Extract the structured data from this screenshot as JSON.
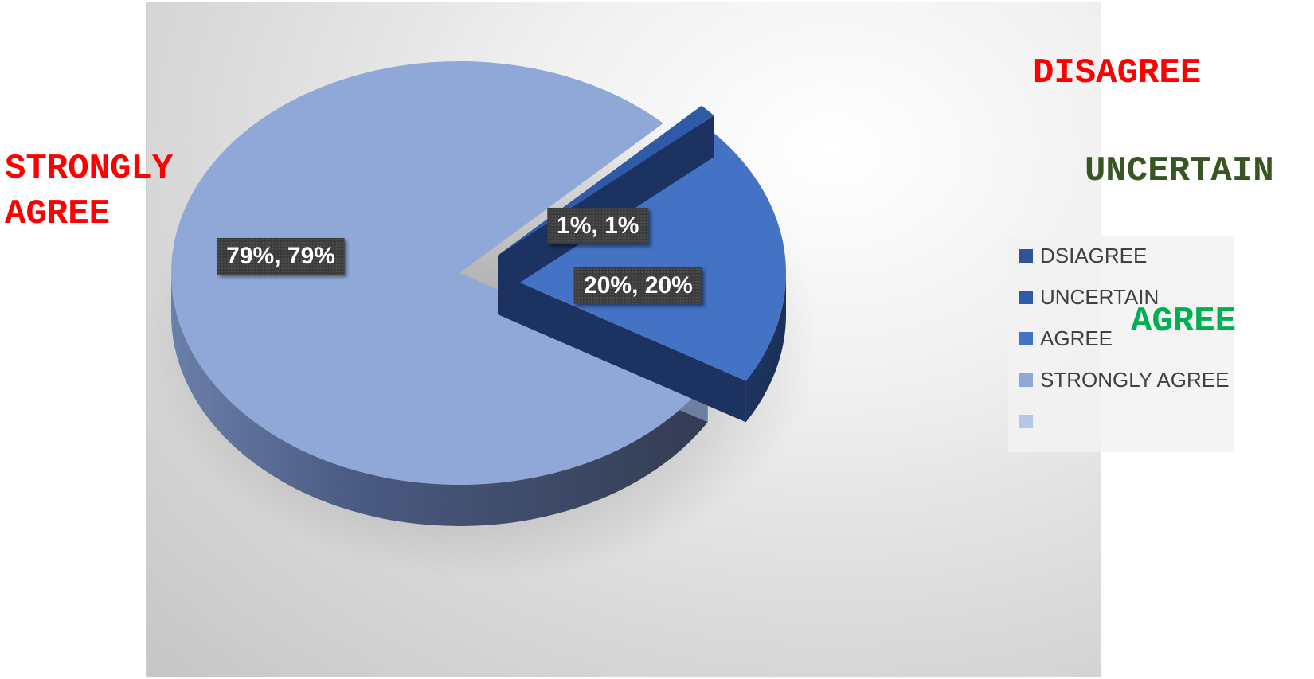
{
  "chart_data": {
    "type": "pie",
    "style": "3d-exploded",
    "categories": [
      "DSIAGREE",
      "UNCERTAIN",
      "AGREE",
      "STRONGLY AGREE",
      ""
    ],
    "values": [
      0,
      1,
      20,
      79,
      0
    ],
    "colors": [
      "#2f5597",
      "#2e5aa8",
      "#4472c4",
      "#8fa8d8",
      "#b4c7e7"
    ],
    "data_labels": [
      {
        "category": "UNCERTAIN",
        "text": "1%, 1%"
      },
      {
        "category": "AGREE",
        "text": "20%, 20%"
      },
      {
        "category": "STRONGLY AGREE",
        "text": "79%, 79%"
      }
    ],
    "legend": {
      "placement": "right",
      "entries": [
        "DSIAGREE",
        "UNCERTAIN",
        "AGREE",
        "STRONGLY AGREE",
        ""
      ]
    }
  },
  "annotations": {
    "disagree": "DISAGREE",
    "uncertain": "UNCERTAIN",
    "agree": "AGREE",
    "strongly_agree_line1": "STRONGLY",
    "strongly_agree_line2": "AGREE"
  },
  "annotation_colors": {
    "disagree": "#ff0000",
    "uncertain": "#375623",
    "agree": "#00b050",
    "strongly_agree": "#ff0000"
  }
}
